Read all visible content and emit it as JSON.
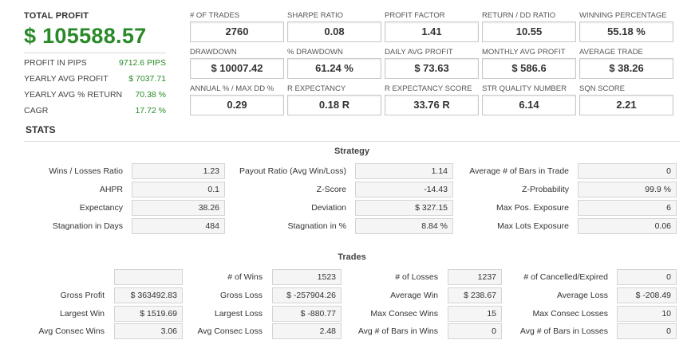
{
  "summary": {
    "total_profit_label": "TOTAL PROFIT",
    "total_profit_value": "$ 105588.57",
    "rows": [
      {
        "label": "PROFIT IN PIPS",
        "value": "9712.6 PIPS"
      },
      {
        "label": "YEARLY AVG PROFIT",
        "value": "$ 7037.71"
      },
      {
        "label": "YEARLY AVG % RETURN",
        "value": "70.38 %"
      },
      {
        "label": "CAGR",
        "value": "17.72 %"
      }
    ]
  },
  "metrics": [
    {
      "label": "# OF TRADES",
      "value": "2760"
    },
    {
      "label": "SHARPE RATIO",
      "value": "0.08"
    },
    {
      "label": "PROFIT FACTOR",
      "value": "1.41"
    },
    {
      "label": "RETURN / DD RATIO",
      "value": "10.55"
    },
    {
      "label": "WINNING PERCENTAGE",
      "value": "55.18 %"
    },
    {
      "label": "DRAWDOWN",
      "value": "$ 10007.42"
    },
    {
      "label": "% DRAWDOWN",
      "value": "61.24 %"
    },
    {
      "label": "DAILY AVG PROFIT",
      "value": "$ 73.63"
    },
    {
      "label": "MONTHLY AVG PROFIT",
      "value": "$ 586.6"
    },
    {
      "label": "AVERAGE TRADE",
      "value": "$ 38.26"
    },
    {
      "label": "ANNUAL % / MAX DD %",
      "value": "0.29"
    },
    {
      "label": "R EXPECTANCY",
      "value": "0.18 R"
    },
    {
      "label": "R EXPECTANCY SCORE",
      "value": "33.76 R"
    },
    {
      "label": "STR QUALITY NUMBER",
      "value": "6.14"
    },
    {
      "label": "SQN SCORE",
      "value": "2.21"
    }
  ],
  "stats": {
    "title": "STATS",
    "strategy": {
      "title": "Strategy",
      "rows": [
        [
          {
            "label": "Wins / Losses Ratio",
            "value": "1.23"
          },
          {
            "label": "Payout Ratio (Avg Win/Loss)",
            "value": "1.14"
          },
          {
            "label": "Average # of Bars in Trade",
            "value": "0"
          }
        ],
        [
          {
            "label": "AHPR",
            "value": "0.1"
          },
          {
            "label": "Z-Score",
            "value": "-14.43"
          },
          {
            "label": "Z-Probability",
            "value": "99.9 %"
          }
        ],
        [
          {
            "label": "Expectancy",
            "value": "38.26"
          },
          {
            "label": "Deviation",
            "value": "$ 327.15"
          },
          {
            "label": "Max Pos. Exposure",
            "value": "6"
          }
        ],
        [
          {
            "label": "Stagnation in Days",
            "value": "484"
          },
          {
            "label": "Stagnation in %",
            "value": "8.84 %"
          },
          {
            "label": "Max Lots Exposure",
            "value": "0.06"
          }
        ]
      ]
    },
    "trades": {
      "title": "Trades",
      "rows": [
        [
          {
            "label": "",
            "value": ""
          },
          {
            "label": "# of Wins",
            "value": "1523"
          },
          {
            "label": "# of Losses",
            "value": "1237"
          },
          {
            "label": "# of Cancelled/Expired",
            "value": "0"
          }
        ],
        [
          {
            "label": "Gross Profit",
            "value": "$ 363492.83"
          },
          {
            "label": "Gross Loss",
            "value": "$ -257904.26"
          },
          {
            "label": "Average Win",
            "value": "$ 238.67"
          },
          {
            "label": "Average Loss",
            "value": "$ -208.49"
          }
        ],
        [
          {
            "label": "Largest Win",
            "value": "$ 1519.69"
          },
          {
            "label": "Largest Loss",
            "value": "$ -880.77"
          },
          {
            "label": "Max Consec Wins",
            "value": "15"
          },
          {
            "label": "Max Consec Losses",
            "value": "10"
          }
        ],
        [
          {
            "label": "Avg Consec Wins",
            "value": "3.06"
          },
          {
            "label": "Avg Consec Loss",
            "value": "2.48"
          },
          {
            "label": "Avg # of Bars in Wins",
            "value": "0"
          },
          {
            "label": "Avg # of Bars in Losses",
            "value": "0"
          }
        ]
      ]
    }
  },
  "colors": {
    "profit_green": "#2a8a2a",
    "box_border": "#c8c8c8",
    "cell_bg": "#f5f5f5"
  }
}
